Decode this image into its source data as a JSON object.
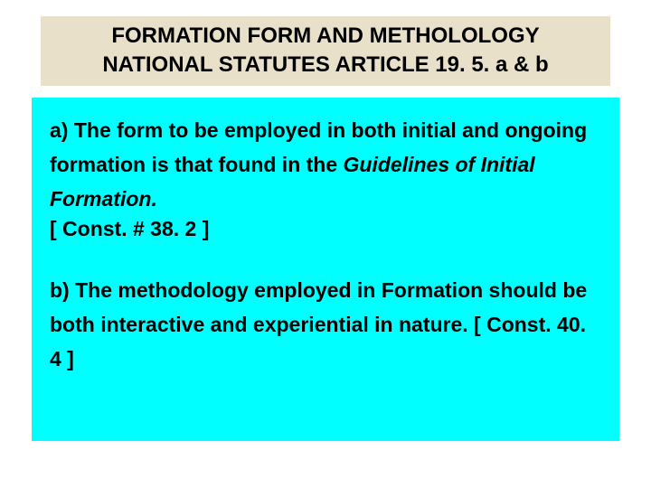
{
  "colors": {
    "title_bg": "#e8e0c8",
    "title_text": "#000000",
    "content_bg": "#00ffff",
    "content_text": "#000000",
    "page_bg": "#ffffff"
  },
  "typography": {
    "title_fontsize": 24,
    "body_fontsize": 23,
    "font_family": "Verdana, Geneva, sans-serif"
  },
  "title": {
    "line1": "FORMATION  FORM  AND METHOLOLOGY",
    "line2": "NATIONAL  STATUTES  ARTICLE  19. 5. a & b"
  },
  "body": {
    "clause_a_text": "a)  The form to be employed in both initial and ongoing formation is that found in the ",
    "clause_a_italic": "Guidelines of Initial Formation.",
    "clause_a_ref": "[ Const. # 38. 2 ]",
    "clause_b_text": "b)  The methodology employed in Formation should be both interactive and experiential in nature. [ Const. 40. 4 ]"
  }
}
